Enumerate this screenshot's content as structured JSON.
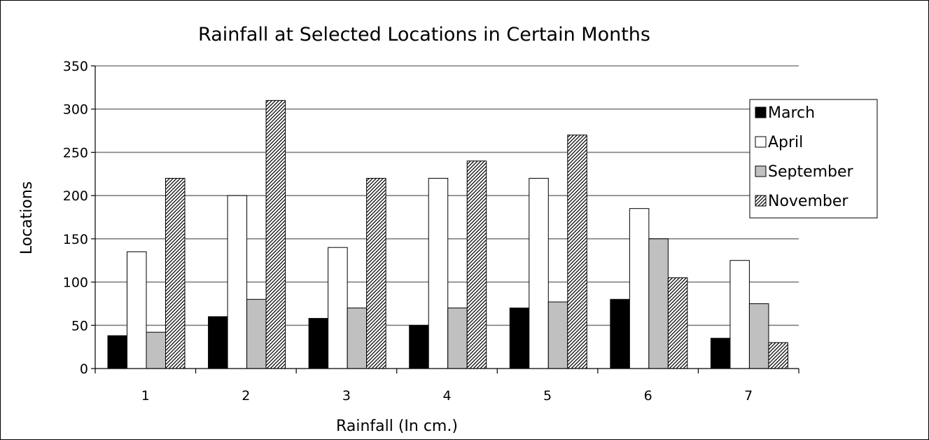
{
  "chart_data": {
    "type": "bar",
    "title": "Rainfall at Selected Locations in Certain Months",
    "xlabel": "Rainfall (In cm.)",
    "ylabel": "Locations",
    "categories": [
      "1",
      "2",
      "3",
      "4",
      "5",
      "6",
      "7"
    ],
    "ylim": [
      0,
      350
    ],
    "yticks": [
      0,
      50,
      100,
      150,
      200,
      250,
      300,
      350
    ],
    "grid": true,
    "legend_position": "right",
    "series": [
      {
        "name": "March",
        "values": [
          38,
          60,
          58,
          50,
          70,
          80,
          35
        ],
        "color": "#000000",
        "pattern": "solid"
      },
      {
        "name": "April",
        "values": [
          135,
          200,
          140,
          220,
          220,
          185,
          125
        ],
        "color": "#ffffff",
        "pattern": "solid"
      },
      {
        "name": "September",
        "values": [
          42,
          80,
          70,
          70,
          77,
          150,
          75
        ],
        "color": "#c0c0c0",
        "pattern": "solid"
      },
      {
        "name": "November",
        "values": [
          220,
          310,
          220,
          240,
          270,
          105,
          30
        ],
        "color": "#ffffff",
        "pattern": "diagonal-hatch"
      }
    ]
  }
}
